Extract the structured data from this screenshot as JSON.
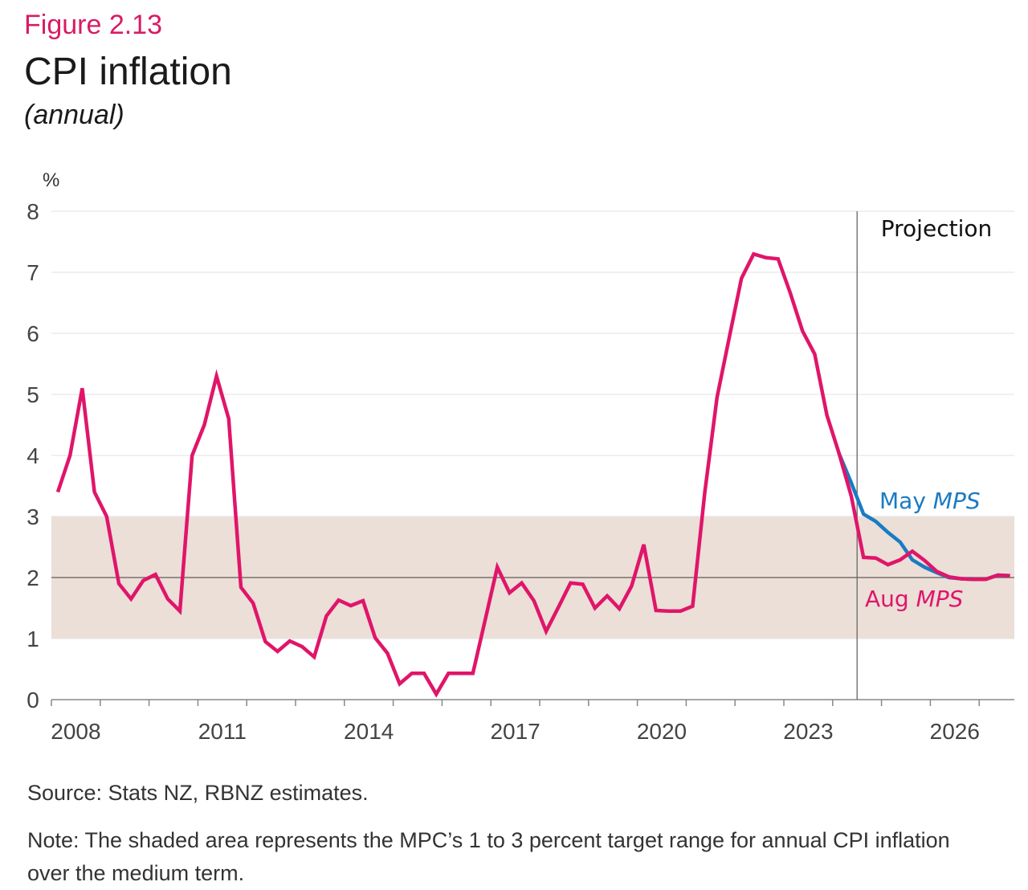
{
  "header": {
    "figure_label": "Figure 2.13",
    "title": "CPI inflation",
    "subtitle": "(annual)",
    "unit": "%"
  },
  "footer": {
    "source": "Source: Stats NZ, RBNZ estimates.",
    "note": "Note: The shaded area represents the MPC’s 1 to 3 percent target range for annual CPI inflation over the medium term."
  },
  "colors": {
    "aug": "#E0156A",
    "may": "#1B7BC2",
    "band": "#EBDFD8",
    "grid": "#E6E6E6",
    "axis": "#888888",
    "target_line": "#7A706C"
  },
  "chart_data": {
    "type": "line",
    "title": "CPI inflation",
    "subtitle": "(annual)",
    "xlabel": "",
    "ylabel": "%",
    "ylim": [
      0,
      8
    ],
    "yticks": [
      "0",
      "1",
      "2",
      "3",
      "4",
      "5",
      "6",
      "7",
      "8"
    ],
    "xlim": [
      2008.0,
      2027.75
    ],
    "xtick_labels": [
      {
        "year": 2008,
        "label": "2008"
      },
      {
        "year": 2011,
        "label": "2011"
      },
      {
        "year": 2014,
        "label": "2014"
      },
      {
        "year": 2017,
        "label": "2017"
      },
      {
        "year": 2020,
        "label": "2020"
      },
      {
        "year": 2023,
        "label": "2023"
      },
      {
        "year": 2026,
        "label": "2026"
      }
    ],
    "x_start_quarter": "2008 Q1",
    "frequency": "quarterly",
    "grid": true,
    "target_band": {
      "low": 1,
      "high": 3,
      "midpoint": 2
    },
    "projection": {
      "start": 2024.5,
      "label": "Projection"
    },
    "series": [
      {
        "name": "May MPS",
        "label_main": "May",
        "label_italic": "MPS",
        "color": "#1B7BC2",
        "start_index": 64,
        "values": [
          4.03,
          3.55,
          3.04,
          2.92,
          2.74,
          2.58,
          2.29,
          2.17,
          2.08,
          2.0,
          1.98,
          1.97,
          1.97,
          2.04,
          2.03
        ]
      },
      {
        "name": "Aug MPS",
        "label_main": "Aug",
        "label_italic": "MPS",
        "color": "#E0156A",
        "start_index": 0,
        "values": [
          3.4,
          4.0,
          5.1,
          3.4,
          3.0,
          1.9,
          1.65,
          1.95,
          2.05,
          1.65,
          1.45,
          4.0,
          4.5,
          5.3,
          4.6,
          1.84,
          1.58,
          0.95,
          0.79,
          0.96,
          0.87,
          0.7,
          1.37,
          1.63,
          1.54,
          1.62,
          1.01,
          0.76,
          0.26,
          0.43,
          0.43,
          0.09,
          0.43,
          0.43,
          0.43,
          1.3,
          2.17,
          1.75,
          1.91,
          1.62,
          1.12,
          1.51,
          1.91,
          1.89,
          1.5,
          1.7,
          1.49,
          1.86,
          2.54,
          1.46,
          1.45,
          1.45,
          1.53,
          3.4,
          4.95,
          5.93,
          6.9,
          7.3,
          7.24,
          7.22,
          6.66,
          6.04,
          5.66,
          4.66,
          4.03,
          3.33,
          2.33,
          2.32,
          2.21,
          2.29,
          2.43,
          2.28,
          2.1,
          2.01,
          1.98,
          1.97,
          1.97,
          2.04,
          2.03
        ]
      }
    ]
  }
}
